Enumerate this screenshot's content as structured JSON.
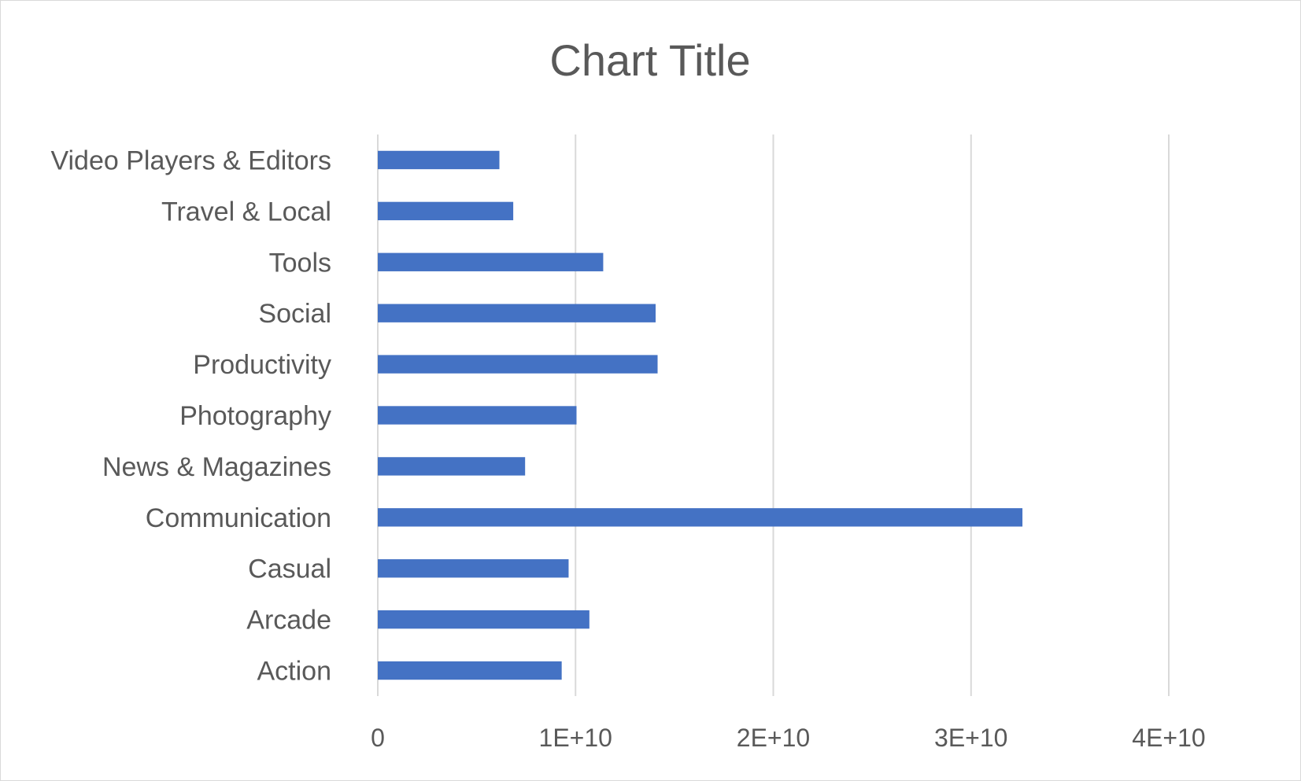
{
  "chart_data": {
    "type": "bar",
    "orientation": "horizontal",
    "title": "Chart Title",
    "xlabel": "",
    "ylabel": "",
    "categories": [
      "Action",
      "Arcade",
      "Casual",
      "Communication",
      "News & Magazines",
      "Photography",
      "Productivity",
      "Social",
      "Tools",
      "Travel & Local",
      "Video Players & Editors"
    ],
    "values": [
      9300000000,
      10700000000,
      9650000000,
      32600000000,
      7450000000,
      10050000000,
      14150000000,
      14050000000,
      11400000000,
      6850000000,
      6150000000
    ],
    "xlim": [
      0,
      40000000000
    ],
    "ticks": [
      0,
      10000000000,
      20000000000,
      30000000000,
      40000000000
    ],
    "tick_labels": [
      "0",
      "1E+10",
      "2E+10",
      "3E+10",
      "4E+10"
    ],
    "grid": true,
    "legend": "none",
    "bar_color": "#4472C4"
  }
}
